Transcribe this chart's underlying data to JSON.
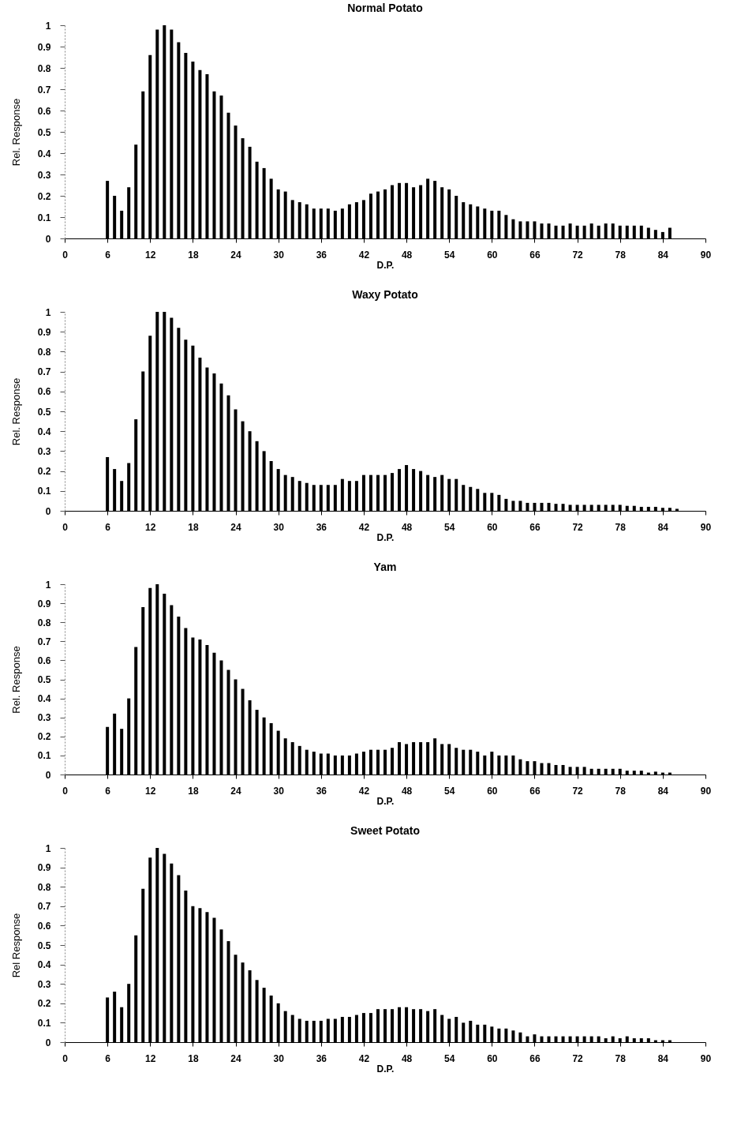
{
  "chart_data": [
    {
      "type": "bar",
      "title": "Normal Potato",
      "xlabel": "D.P.",
      "ylabel": "Rel. Response",
      "color": "#000000",
      "xlim": [
        0,
        90
      ],
      "xticks": [
        0,
        6,
        12,
        18,
        24,
        30,
        36,
        42,
        48,
        54,
        60,
        66,
        72,
        78,
        84,
        90
      ],
      "ylim": [
        0,
        1
      ],
      "yticks": [
        0,
        0.1,
        0.2,
        0.3,
        0.4,
        0.5,
        0.6,
        0.7,
        0.8,
        0.9,
        1
      ],
      "x": [
        6,
        7,
        8,
        9,
        10,
        11,
        12,
        13,
        14,
        15,
        16,
        17,
        18,
        19,
        20,
        21,
        22,
        23,
        24,
        25,
        26,
        27,
        28,
        29,
        30,
        31,
        32,
        33,
        34,
        35,
        36,
        37,
        38,
        39,
        40,
        41,
        42,
        43,
        44,
        45,
        46,
        47,
        48,
        49,
        50,
        51,
        52,
        53,
        54,
        55,
        56,
        57,
        58,
        59,
        60,
        61,
        62,
        63,
        64,
        65,
        66,
        67,
        68,
        69,
        70,
        71,
        72,
        73,
        74,
        75,
        76,
        77,
        78,
        79,
        80,
        81,
        82,
        83,
        84,
        85
      ],
      "values": [
        0.27,
        0.2,
        0.13,
        0.24,
        0.44,
        0.69,
        0.86,
        0.98,
        1.0,
        0.98,
        0.92,
        0.87,
        0.83,
        0.79,
        0.77,
        0.69,
        0.67,
        0.59,
        0.53,
        0.47,
        0.43,
        0.36,
        0.33,
        0.28,
        0.23,
        0.22,
        0.18,
        0.17,
        0.16,
        0.14,
        0.14,
        0.14,
        0.13,
        0.14,
        0.16,
        0.17,
        0.18,
        0.21,
        0.22,
        0.23,
        0.25,
        0.26,
        0.26,
        0.24,
        0.25,
        0.28,
        0.27,
        0.24,
        0.23,
        0.2,
        0.17,
        0.16,
        0.15,
        0.14,
        0.13,
        0.13,
        0.11,
        0.09,
        0.08,
        0.08,
        0.08,
        0.07,
        0.07,
        0.06,
        0.06,
        0.07,
        0.06,
        0.06,
        0.07,
        0.06,
        0.07,
        0.07,
        0.06,
        0.06,
        0.06,
        0.06,
        0.05,
        0.04,
        0.03,
        0.05
      ]
    },
    {
      "type": "bar",
      "title": "Waxy Potato",
      "xlabel": "D.P.",
      "ylabel": "Rel. Response",
      "color": "#000000",
      "xlim": [
        0,
        90
      ],
      "xticks": [
        0,
        6,
        12,
        18,
        24,
        30,
        36,
        42,
        48,
        54,
        60,
        66,
        72,
        78,
        84,
        90
      ],
      "ylim": [
        0,
        1
      ],
      "yticks": [
        0,
        0.1,
        0.2,
        0.3,
        0.4,
        0.5,
        0.6,
        0.7,
        0.8,
        0.9,
        1
      ],
      "x": [
        6,
        7,
        8,
        9,
        10,
        11,
        12,
        13,
        14,
        15,
        16,
        17,
        18,
        19,
        20,
        21,
        22,
        23,
        24,
        25,
        26,
        27,
        28,
        29,
        30,
        31,
        32,
        33,
        34,
        35,
        36,
        37,
        38,
        39,
        40,
        41,
        42,
        43,
        44,
        45,
        46,
        47,
        48,
        49,
        50,
        51,
        52,
        53,
        54,
        55,
        56,
        57,
        58,
        59,
        60,
        61,
        62,
        63,
        64,
        65,
        66,
        67,
        68,
        69,
        70,
        71,
        72,
        73,
        74,
        75,
        76,
        77,
        78,
        79,
        80,
        81,
        82,
        83,
        84,
        85,
        86
      ],
      "values": [
        0.27,
        0.21,
        0.15,
        0.24,
        0.46,
        0.7,
        0.88,
        1.0,
        1.0,
        0.97,
        0.92,
        0.86,
        0.83,
        0.77,
        0.72,
        0.69,
        0.64,
        0.58,
        0.51,
        0.45,
        0.4,
        0.35,
        0.3,
        0.25,
        0.21,
        0.18,
        0.17,
        0.15,
        0.14,
        0.13,
        0.13,
        0.13,
        0.13,
        0.16,
        0.15,
        0.15,
        0.18,
        0.18,
        0.18,
        0.18,
        0.19,
        0.21,
        0.23,
        0.21,
        0.2,
        0.18,
        0.17,
        0.18,
        0.16,
        0.16,
        0.13,
        0.12,
        0.11,
        0.09,
        0.09,
        0.08,
        0.06,
        0.05,
        0.05,
        0.04,
        0.04,
        0.04,
        0.04,
        0.035,
        0.035,
        0.03,
        0.03,
        0.03,
        0.03,
        0.03,
        0.03,
        0.03,
        0.03,
        0.025,
        0.025,
        0.02,
        0.02,
        0.02,
        0.015,
        0.015,
        0.01
      ]
    },
    {
      "type": "bar",
      "title": "Yam",
      "xlabel": "D.P.",
      "ylabel": "Rel. Response",
      "color": "#000000",
      "xlim": [
        0,
        90
      ],
      "xticks": [
        0,
        6,
        12,
        18,
        24,
        30,
        36,
        42,
        48,
        54,
        60,
        66,
        72,
        78,
        84,
        90
      ],
      "ylim": [
        0,
        1
      ],
      "yticks": [
        0,
        0.1,
        0.2,
        0.3,
        0.4,
        0.5,
        0.6,
        0.7,
        0.8,
        0.9,
        1
      ],
      "x": [
        6,
        7,
        8,
        9,
        10,
        11,
        12,
        13,
        14,
        15,
        16,
        17,
        18,
        19,
        20,
        21,
        22,
        23,
        24,
        25,
        26,
        27,
        28,
        29,
        30,
        31,
        32,
        33,
        34,
        35,
        36,
        37,
        38,
        39,
        40,
        41,
        42,
        43,
        44,
        45,
        46,
        47,
        48,
        49,
        50,
        51,
        52,
        53,
        54,
        55,
        56,
        57,
        58,
        59,
        60,
        61,
        62,
        63,
        64,
        65,
        66,
        67,
        68,
        69,
        70,
        71,
        72,
        73,
        74,
        75,
        76,
        77,
        78,
        79,
        80,
        81,
        82,
        83,
        84,
        85
      ],
      "values": [
        0.25,
        0.32,
        0.24,
        0.4,
        0.67,
        0.88,
        0.98,
        1.0,
        0.95,
        0.89,
        0.83,
        0.77,
        0.72,
        0.71,
        0.68,
        0.64,
        0.6,
        0.55,
        0.5,
        0.45,
        0.39,
        0.34,
        0.3,
        0.27,
        0.23,
        0.19,
        0.17,
        0.15,
        0.13,
        0.12,
        0.11,
        0.11,
        0.1,
        0.1,
        0.1,
        0.11,
        0.12,
        0.13,
        0.13,
        0.13,
        0.14,
        0.17,
        0.16,
        0.17,
        0.17,
        0.17,
        0.19,
        0.16,
        0.16,
        0.14,
        0.13,
        0.13,
        0.12,
        0.1,
        0.12,
        0.1,
        0.1,
        0.1,
        0.08,
        0.07,
        0.07,
        0.06,
        0.06,
        0.05,
        0.05,
        0.04,
        0.04,
        0.04,
        0.03,
        0.03,
        0.03,
        0.03,
        0.03,
        0.02,
        0.02,
        0.02,
        0.01,
        0.015,
        0.01,
        0.01
      ]
    },
    {
      "type": "bar",
      "title": "Sweet Potato",
      "xlabel": "D.P.",
      "ylabel": "Rel Response",
      "color": "#000000",
      "xlim": [
        0,
        90
      ],
      "xticks": [
        0,
        6,
        12,
        18,
        24,
        30,
        36,
        42,
        48,
        54,
        60,
        66,
        72,
        78,
        84,
        90
      ],
      "ylim": [
        0,
        1
      ],
      "yticks": [
        0,
        0.1,
        0.2,
        0.3,
        0.4,
        0.5,
        0.6,
        0.7,
        0.8,
        0.9,
        1
      ],
      "x": [
        6,
        7,
        8,
        9,
        10,
        11,
        12,
        13,
        14,
        15,
        16,
        17,
        18,
        19,
        20,
        21,
        22,
        23,
        24,
        25,
        26,
        27,
        28,
        29,
        30,
        31,
        32,
        33,
        34,
        35,
        36,
        37,
        38,
        39,
        40,
        41,
        42,
        43,
        44,
        45,
        46,
        47,
        48,
        49,
        50,
        51,
        52,
        53,
        54,
        55,
        56,
        57,
        58,
        59,
        60,
        61,
        62,
        63,
        64,
        65,
        66,
        67,
        68,
        69,
        70,
        71,
        72,
        73,
        74,
        75,
        76,
        77,
        78,
        79,
        80,
        81,
        82,
        83,
        84,
        85
      ],
      "values": [
        0.23,
        0.26,
        0.18,
        0.3,
        0.55,
        0.79,
        0.95,
        1.0,
        0.97,
        0.92,
        0.86,
        0.78,
        0.7,
        0.69,
        0.67,
        0.64,
        0.58,
        0.52,
        0.45,
        0.41,
        0.37,
        0.32,
        0.28,
        0.24,
        0.2,
        0.16,
        0.14,
        0.12,
        0.11,
        0.11,
        0.11,
        0.12,
        0.12,
        0.13,
        0.13,
        0.14,
        0.15,
        0.15,
        0.17,
        0.17,
        0.17,
        0.18,
        0.18,
        0.17,
        0.17,
        0.16,
        0.17,
        0.14,
        0.12,
        0.13,
        0.1,
        0.11,
        0.09,
        0.09,
        0.08,
        0.07,
        0.07,
        0.06,
        0.05,
        0.03,
        0.04,
        0.03,
        0.03,
        0.03,
        0.03,
        0.03,
        0.03,
        0.03,
        0.03,
        0.03,
        0.02,
        0.03,
        0.02,
        0.03,
        0.02,
        0.02,
        0.02,
        0.01,
        0.01,
        0.01
      ]
    }
  ]
}
